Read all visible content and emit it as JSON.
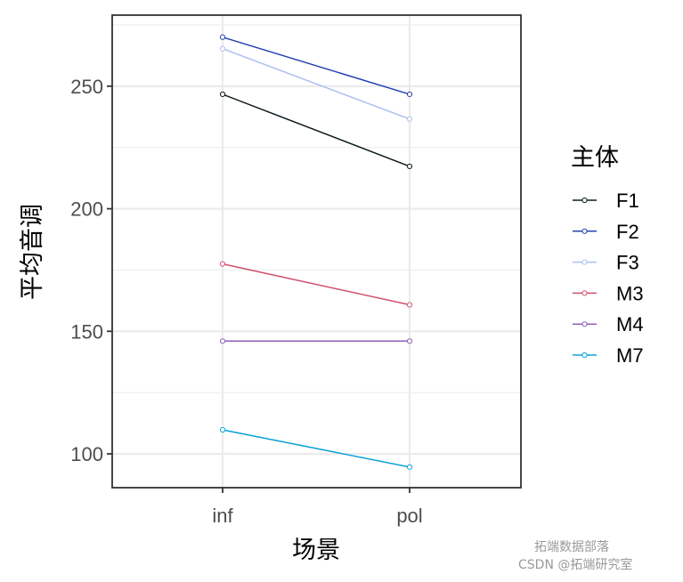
{
  "chart_data": {
    "type": "line",
    "title": "",
    "xlabel": "场景",
    "ylabel": "平均音调",
    "categories": [
      "inf",
      "pol"
    ],
    "yticks": [
      100,
      150,
      200,
      250
    ],
    "ylim": [
      86.2,
      279.0
    ],
    "grid": true,
    "legend_position": "right",
    "legend_title": "主体",
    "series": [
      {
        "name": "F1",
        "color": "#0d1b1e",
        "values": [
          246.7,
          217.3
        ]
      },
      {
        "name": "F2",
        "color": "#2541b2",
        "values": [
          270.0,
          246.7
        ]
      },
      {
        "name": "F3",
        "color": "#adc0ee",
        "values": [
          265.3,
          236.6
        ]
      },
      {
        "name": "M3",
        "color": "#d1526e",
        "values": [
          177.5,
          160.8
        ]
      },
      {
        "name": "M4",
        "color": "#8f5fb8",
        "values": [
          146.0,
          146.0
        ]
      },
      {
        "name": "M7",
        "color": "#0fa3d6",
        "values": [
          109.8,
          94.6
        ]
      }
    ]
  },
  "watermark": {
    "line1": "拓端数据部落",
    "line2": "CSDN @拓端研究室"
  }
}
